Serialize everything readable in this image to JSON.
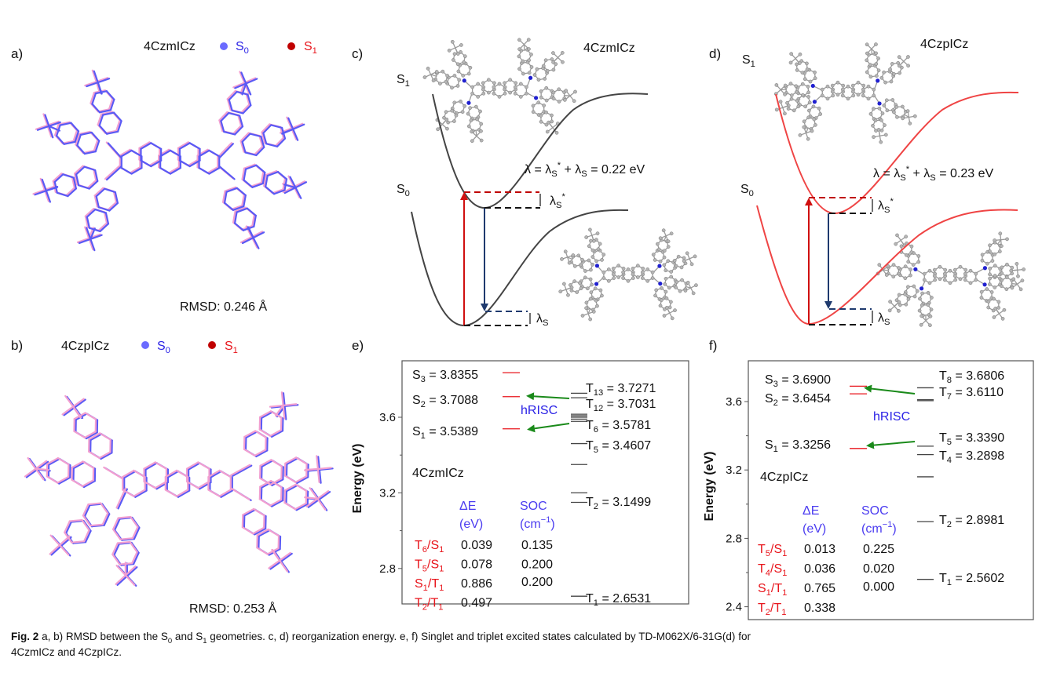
{
  "colors": {
    "s0_overlay": "#5a5af5",
    "s1_overlay": "#f29fd0",
    "s0_legend_dot": "#6b6bff",
    "s1_legend_dot": "#c00000",
    "red": "#e8141b",
    "blue_arrow": "#1f3a6e",
    "green_arrow": "#1a8a1a",
    "curve_dark": "#444444",
    "curve_red": "#ef4444",
    "hrisc": "#2b22e6"
  },
  "panel_a": {
    "label": "a)",
    "molecule": "4CzmICz",
    "legend": [
      {
        "runs": [
          {
            "t": "S"
          },
          {
            "sub": "0"
          }
        ]
      },
      {
        "runs": [
          {
            "t": "S"
          },
          {
            "sub": "1"
          }
        ]
      }
    ],
    "rmsd": "RMSD: 0.246 Å"
  },
  "panel_b": {
    "label": "b)",
    "molecule": "4CzpICz",
    "legend": [
      {
        "runs": [
          {
            "t": "S"
          },
          {
            "sub": "0"
          }
        ]
      },
      {
        "runs": [
          {
            "t": "S"
          },
          {
            "sub": "1"
          }
        ]
      }
    ],
    "rmsd": "RMSD: 0.253 Å"
  },
  "panel_c": {
    "label": "c)",
    "molecule": "4CzmICz",
    "s1": [
      {
        "t": "S"
      },
      {
        "sub": "1"
      }
    ],
    "s0": [
      {
        "t": "S"
      },
      {
        "sub": "0"
      }
    ],
    "lambda_eq": [
      {
        "t": "λ = λ"
      },
      {
        "sub": "S"
      },
      {
        "sup": "*"
      },
      {
        "t": " + λ"
      },
      {
        "sub": "S"
      },
      {
        "t": " = 0.22 eV"
      }
    ],
    "lambda_star": [
      {
        "t": "λ"
      },
      {
        "sub": "S"
      },
      {
        "sup": "*"
      }
    ],
    "lambda": [
      {
        "t": "λ"
      },
      {
        "sub": "S"
      }
    ]
  },
  "panel_d": {
    "label": "d)",
    "molecule": "4CzpICz",
    "s1": [
      {
        "t": "S"
      },
      {
        "sub": "1"
      }
    ],
    "s0": [
      {
        "t": "S"
      },
      {
        "sub": "0"
      }
    ],
    "lambda_eq": [
      {
        "t": "λ = λ"
      },
      {
        "sub": "S"
      },
      {
        "sup": "*"
      },
      {
        "t": " + λ"
      },
      {
        "sub": "S"
      },
      {
        "t": " = 0.23 eV"
      }
    ],
    "lambda_star": [
      {
        "t": "λ"
      },
      {
        "sub": "S"
      },
      {
        "sup": "*"
      }
    ],
    "lambda": [
      {
        "t": "λ"
      },
      {
        "sub": "S"
      }
    ]
  },
  "chart_data": [
    {
      "panel": "e)",
      "type": "energy-level",
      "molecule": "4CzmICz",
      "ylabel": "Energy (eV)",
      "yticks": [
        "3.6",
        "3.2",
        "2.8"
      ],
      "ylim": [
        2.62,
        3.89
      ],
      "singlets": [
        {
          "E": 3.8355,
          "label": [
            {
              "t": "S"
            },
            {
              "sub": "3"
            },
            {
              "t": " = 3.8355"
            }
          ]
        },
        {
          "E": 3.7088,
          "label": [
            {
              "t": "S"
            },
            {
              "sub": "2"
            },
            {
              "t": " = 3.7088"
            }
          ]
        },
        {
          "E": 3.5389,
          "label": [
            {
              "t": "S"
            },
            {
              "sub": "1"
            },
            {
              "t": " = 3.5389"
            }
          ]
        }
      ],
      "triplets": [
        {
          "E": 3.7271,
          "label": [
            {
              "t": "T"
            },
            {
              "sub": "13"
            },
            {
              "t": " = 3.7271"
            }
          ]
        },
        {
          "E": 3.7031,
          "label": [
            {
              "t": "T"
            },
            {
              "sub": "12"
            },
            {
              "t": " = 3.7031"
            }
          ]
        },
        {
          "E": 3.616
        },
        {
          "E": 3.608
        },
        {
          "E": 3.6
        },
        {
          "E": 3.59
        },
        {
          "E": 3.5781,
          "label": [
            {
              "t": "T"
            },
            {
              "sub": "6"
            },
            {
              "t": " = 3.5781"
            }
          ]
        },
        {
          "E": 3.4607,
          "label": [
            {
              "t": "T"
            },
            {
              "sub": "5"
            },
            {
              "t": " = 3.4607"
            }
          ]
        },
        {
          "E": 3.35
        },
        {
          "E": 3.2
        },
        {
          "E": 3.1499,
          "label": [
            {
              "t": "T"
            },
            {
              "sub": "2"
            },
            {
              "t": " = 3.1499"
            }
          ]
        },
        {
          "E": 2.6531,
          "label": [
            {
              "t": "T"
            },
            {
              "sub": "1"
            },
            {
              "t": " = 2.6531"
            }
          ]
        }
      ],
      "hrisc": "hRISC",
      "table": {
        "headers": [
          [
            {
              "t": "ΔE"
            }
          ],
          [
            {
              "t": "(eV)"
            }
          ],
          [
            {
              "t": "SOC"
            }
          ],
          [
            {
              "t": "(cm"
            },
            {
              "sup": "−1"
            },
            {
              "t": ")"
            }
          ]
        ],
        "rows": [
          {
            "pair": [
              {
                "t": "T"
              },
              {
                "sub": "6"
              },
              {
                "t": "/S"
              },
              {
                "sub": "1"
              }
            ],
            "dE": "0.039",
            "soc": "0.135"
          },
          {
            "pair": [
              {
                "t": "T"
              },
              {
                "sub": "5"
              },
              {
                "t": "/S"
              },
              {
                "sub": "1"
              }
            ],
            "dE": "0.078",
            "soc": "0.200"
          },
          {
            "pair": [
              {
                "t": "S"
              },
              {
                "sub": "1"
              },
              {
                "t": "/T"
              },
              {
                "sub": "1"
              }
            ],
            "dE": "0.886",
            "soc": "0.200"
          },
          {
            "pair": [
              {
                "t": "T"
              },
              {
                "sub": "2"
              },
              {
                "t": "/T"
              },
              {
                "sub": "1"
              }
            ],
            "dE": "0.497",
            "soc": ""
          }
        ]
      }
    },
    {
      "panel": "f)",
      "type": "energy-level",
      "molecule": "4CzpICz",
      "ylabel": "Energy (eV)",
      "yticks": [
        "3.6",
        "3.2",
        "2.8",
        "2.4"
      ],
      "ylim": [
        2.33,
        3.82
      ],
      "singlets": [
        {
          "E": 3.69,
          "label": [
            {
              "t": "S"
            },
            {
              "sub": "3"
            },
            {
              "t": " = 3.6900"
            }
          ]
        },
        {
          "E": 3.6454,
          "label": [
            {
              "t": "S"
            },
            {
              "sub": "2"
            },
            {
              "t": " = 3.6454"
            }
          ]
        },
        {
          "E": 3.3256,
          "label": [
            {
              "t": "S"
            },
            {
              "sub": "1"
            },
            {
              "t": " = 3.3256"
            }
          ]
        }
      ],
      "triplets": [
        {
          "E": 3.6806,
          "label": [
            {
              "t": "T"
            },
            {
              "sub": "8"
            },
            {
              "t": " = 3.6806"
            }
          ]
        },
        {
          "E": 3.611,
          "label": [
            {
              "t": "T"
            },
            {
              "sub": "7"
            },
            {
              "t": " = 3.6110"
            }
          ]
        },
        {
          "E": 3.605
        },
        {
          "E": 3.339,
          "label": [
            {
              "t": "T"
            },
            {
              "sub": "5"
            },
            {
              "t": " = 3.3390"
            }
          ]
        },
        {
          "E": 3.2898,
          "label": [
            {
              "t": "T"
            },
            {
              "sub": "4"
            },
            {
              "t": " = 3.2898"
            }
          ]
        },
        {
          "E": 3.16
        },
        {
          "E": 2.8981,
          "label": [
            {
              "t": "T"
            },
            {
              "sub": "2"
            },
            {
              "t": " = 2.8981"
            }
          ]
        },
        {
          "E": 2.5602,
          "label": [
            {
              "t": "T"
            },
            {
              "sub": "1"
            },
            {
              "t": " = 2.5602"
            }
          ]
        }
      ],
      "hrisc": "hRISC",
      "table": {
        "headers": [
          [
            {
              "t": "ΔE"
            }
          ],
          [
            {
              "t": "(eV)"
            }
          ],
          [
            {
              "t": "SOC"
            }
          ],
          [
            {
              "t": "(cm"
            },
            {
              "sup": "−1"
            },
            {
              "t": ")"
            }
          ]
        ],
        "rows": [
          {
            "pair": [
              {
                "t": "T"
              },
              {
                "sub": "5"
              },
              {
                "t": "/S"
              },
              {
                "sub": "1"
              }
            ],
            "dE": "0.013",
            "soc": "0.225"
          },
          {
            "pair": [
              {
                "t": "T"
              },
              {
                "sub": "4"
              },
              {
                "t": "/S"
              },
              {
                "sub": "1"
              }
            ],
            "dE": "0.036",
            "soc": "0.020"
          },
          {
            "pair": [
              {
                "t": "S"
              },
              {
                "sub": "1"
              },
              {
                "t": "/T"
              },
              {
                "sub": "1"
              }
            ],
            "dE": "0.765",
            "soc": "0.000"
          },
          {
            "pair": [
              {
                "t": "T"
              },
              {
                "sub": "2"
              },
              {
                "t": "/T"
              },
              {
                "sub": "1"
              }
            ],
            "dE": "0.338",
            "soc": ""
          }
        ]
      }
    }
  ],
  "panel_labels": {
    "e": "e)",
    "f": "f)"
  },
  "caption": {
    "line1": [
      {
        "b": "Fig. 2"
      },
      {
        "t": " a, b) RMSD between the S"
      },
      {
        "sub": "0"
      },
      {
        "t": " and S"
      },
      {
        "sub": "1"
      },
      {
        "t": " geometries. c, d) reorganization energy. e, f) Singlet and triplet excited states calculated by TD-M062X/6-31G(d) for"
      }
    ],
    "line2": [
      {
        "t": "4CzmICz and 4CzpICz."
      }
    ]
  }
}
